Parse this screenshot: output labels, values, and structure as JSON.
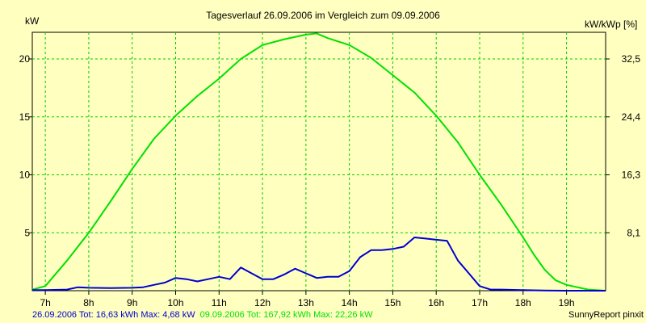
{
  "chart_data": {
    "type": "line",
    "title": "Tagesverlauf 26.09.2006 im Vergleich zum 09.09.2006",
    "y_left_label": "kW",
    "y_right_label": "kW/kWp [%]",
    "x_ticks": [
      "7h",
      "8h",
      "9h",
      "10h",
      "11h",
      "12h",
      "13h",
      "14h",
      "15h",
      "16h",
      "17h",
      "18h",
      "19h"
    ],
    "x_range": [
      6.7,
      19.9
    ],
    "y_left_range": [
      0,
      22.3
    ],
    "y_left_ticks": [
      "5",
      "10",
      "15",
      "20"
    ],
    "y_right_ticks": [
      "8,1",
      "16,3",
      "24,4",
      "32,5"
    ],
    "grid": true,
    "footer_credit": "SunnyReport pinxit",
    "series": [
      {
        "name": "26.09.2006",
        "color": "#0000d0",
        "legend_text": "26.09.2006 Tot: 16,63 kWh Max: 4,68 kW",
        "x": [
          6.7,
          7.0,
          7.5,
          7.75,
          8.0,
          8.5,
          9.0,
          9.25,
          9.5,
          9.75,
          10.0,
          10.25,
          10.5,
          10.75,
          11.0,
          11.25,
          11.5,
          11.75,
          12.0,
          12.25,
          12.5,
          12.75,
          13.0,
          13.25,
          13.5,
          13.75,
          14.0,
          14.25,
          14.5,
          14.75,
          15.0,
          15.25,
          15.5,
          15.75,
          16.0,
          16.25,
          16.5,
          16.75,
          17.0,
          17.25,
          17.5,
          18.0,
          18.5,
          19.0,
          19.5,
          19.9
        ],
        "y": [
          0.05,
          0.05,
          0.1,
          0.3,
          0.25,
          0.22,
          0.25,
          0.3,
          0.5,
          0.7,
          1.1,
          1.0,
          0.8,
          1.0,
          1.2,
          1.0,
          2.0,
          1.5,
          1.0,
          1.0,
          1.4,
          1.9,
          1.5,
          1.1,
          1.2,
          1.2,
          1.7,
          2.9,
          3.5,
          3.5,
          3.6,
          3.8,
          4.6,
          4.5,
          4.4,
          4.3,
          2.6,
          1.5,
          0.4,
          0.1,
          0.1,
          0.05,
          0.02,
          0.0,
          0.0,
          0.0
        ]
      },
      {
        "name": "09.09.2006",
        "color": "#00e000",
        "legend_text": "09.09.2006 Tot: 167,92 kWh Max: 22,26 kW",
        "x": [
          6.7,
          7.0,
          7.5,
          8.0,
          8.5,
          9.0,
          9.5,
          10.0,
          10.5,
          11.0,
          11.5,
          12.0,
          12.5,
          13.0,
          13.25,
          13.5,
          14.0,
          14.5,
          15.0,
          15.5,
          16.0,
          16.5,
          17.0,
          17.5,
          18.0,
          18.25,
          18.5,
          18.75,
          19.0,
          19.5,
          19.9
        ],
        "y": [
          0.1,
          0.4,
          2.6,
          5.0,
          7.7,
          10.5,
          13.1,
          15.1,
          16.8,
          18.3,
          20.0,
          21.2,
          21.7,
          22.1,
          22.2,
          21.8,
          21.2,
          20.1,
          18.6,
          17.1,
          15.1,
          12.8,
          10.0,
          7.4,
          4.6,
          3.1,
          1.8,
          0.9,
          0.5,
          0.1,
          0.0
        ]
      }
    ]
  }
}
